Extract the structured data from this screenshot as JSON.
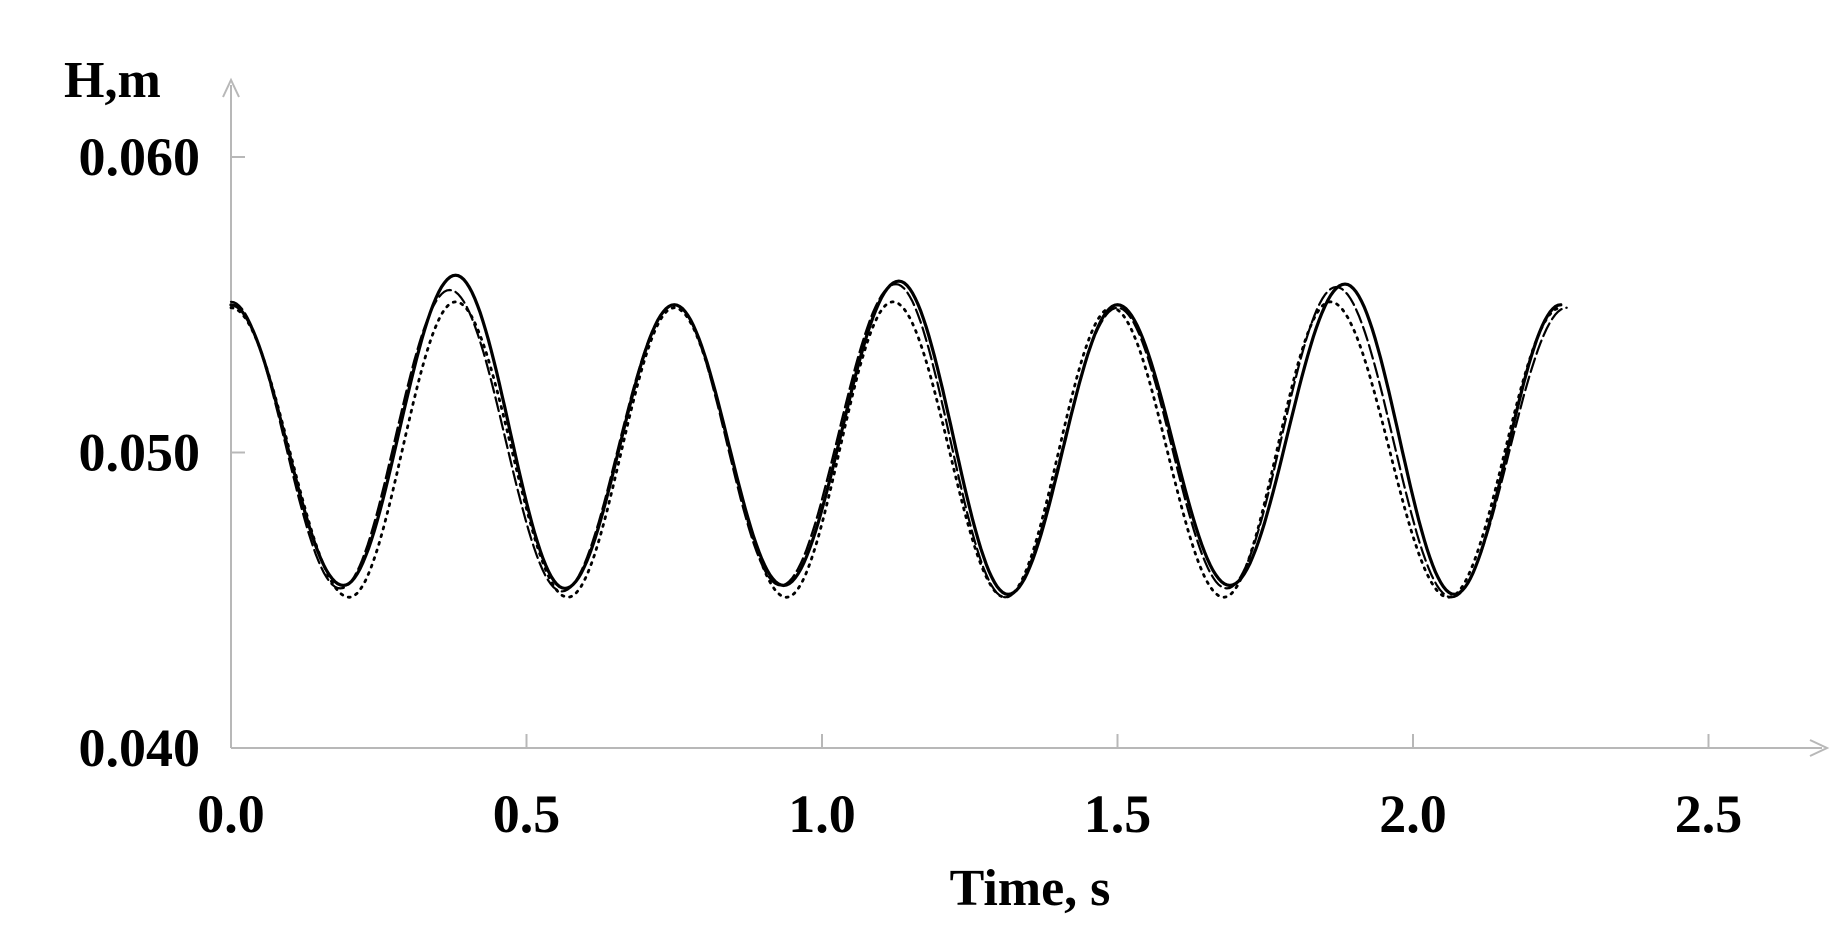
{
  "chart_data": {
    "type": "line",
    "xlabel": "Time, s",
    "ylabel": "H,m",
    "xlim": [
      0.0,
      2.7
    ],
    "ylim": [
      0.04,
      0.062
    ],
    "x_ticks": [
      "0.0",
      "0.5",
      "1.0",
      "1.5",
      "2.0",
      "2.5"
    ],
    "y_ticks": [
      "0.040",
      "0.050",
      "0.060"
    ],
    "grid": false,
    "legend": "none",
    "series": [
      {
        "style": "solid",
        "x": [
          0.0,
          0.19,
          0.38,
          0.565,
          0.75,
          0.935,
          1.13,
          1.315,
          1.5,
          1.69,
          1.885,
          2.07,
          2.25
        ],
        "y": [
          0.055,
          0.0455,
          0.056,
          0.0454,
          0.055,
          0.0455,
          0.0558,
          0.0452,
          0.055,
          0.0455,
          0.0557,
          0.0452,
          0.055
        ]
      },
      {
        "style": "dashed",
        "x": [
          0.0,
          0.185,
          0.37,
          0.56,
          0.75,
          0.93,
          1.125,
          1.31,
          1.5,
          1.685,
          1.87,
          2.065,
          2.26
        ],
        "y": [
          0.0551,
          0.0454,
          0.0555,
          0.0453,
          0.055,
          0.0455,
          0.0557,
          0.0451,
          0.0549,
          0.0454,
          0.0556,
          0.0451,
          0.0549
        ]
      },
      {
        "style": "dotted",
        "x": [
          0.0,
          0.2,
          0.38,
          0.57,
          0.75,
          0.94,
          1.12,
          1.31,
          1.49,
          1.68,
          1.86,
          2.06,
          2.25
        ],
        "y": [
          0.0549,
          0.0451,
          0.0551,
          0.0451,
          0.0549,
          0.0451,
          0.0551,
          0.0451,
          0.0549,
          0.0451,
          0.0551,
          0.0451,
          0.0549
        ]
      }
    ]
  }
}
